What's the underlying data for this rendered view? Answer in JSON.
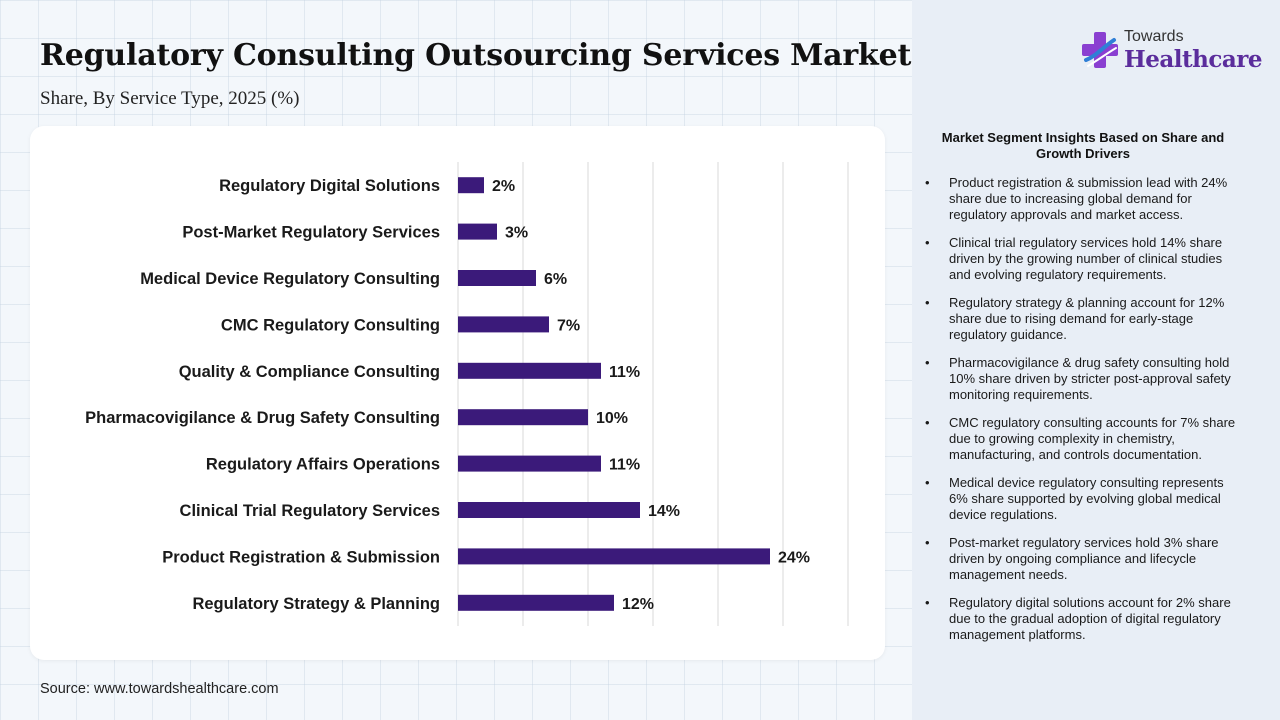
{
  "header": {
    "title": "Regulatory Consulting Outsourcing Services Market",
    "subtitle": "Share, By Service Type, 2025 (%)"
  },
  "brand": {
    "line1": "Towards",
    "line2": "Healthcare",
    "colors": {
      "purple": "#5b2d9c",
      "blue": "#2f7fd6",
      "cross": "#8a3fd1"
    }
  },
  "footer": {
    "source": "Source: www.towardshealthcare.com"
  },
  "colors": {
    "bar": "#3b1a7a",
    "grid": "#d9d9d9"
  },
  "chart_data": {
    "type": "bar",
    "orientation": "horizontal",
    "categories": [
      "Regulatory Digital Solutions",
      "Post-Market Regulatory Services",
      "Medical Device Regulatory Consulting",
      "CMC Regulatory Consulting",
      "Quality & Compliance Consulting",
      "Pharmacovigilance & Drug Safety Consulting",
      "Regulatory Affairs Operations",
      "Clinical Trial Regulatory Services",
      "Product Registration & Submission",
      "Regulatory Strategy & Planning"
    ],
    "values": [
      2,
      3,
      6,
      7,
      11,
      10,
      11,
      14,
      24,
      12
    ],
    "data_labels": [
      "2%",
      "3%",
      "6%",
      "7%",
      "11%",
      "10%",
      "11%",
      "14%",
      "24%",
      "12%"
    ],
    "xlim": [
      0,
      30
    ],
    "grid": true,
    "title": "Regulatory Consulting Outsourcing Services Market",
    "subtitle": "Share, By Service Type, 2025 (%)",
    "xlabel": "",
    "ylabel": ""
  },
  "insights": {
    "title": "Market Segment Insights Based on Share and Growth Drivers",
    "bullet": "•",
    "items": [
      "Product registration & submission lead with 24% share due to increasing global demand for regulatory approvals and market access.",
      "Clinical trial regulatory services hold 14% share driven by the growing number of clinical studies and evolving regulatory requirements.",
      "Regulatory strategy & planning account for 12% share due to rising demand for early-stage regulatory guidance.",
      "Pharmacovigilance & drug safety consulting hold 10% share driven by stricter post-approval safety monitoring requirements.",
      "CMC regulatory consulting accounts for 7% share due to growing complexity in chemistry, manufacturing, and controls documentation.",
      "Medical device regulatory consulting represents 6% share supported by evolving global medical device regulations.",
      "Post-market regulatory services hold 3% share driven by ongoing compliance and lifecycle management needs.",
      "Regulatory digital solutions account for 2% share due to the gradual adoption of digital regulatory management platforms."
    ]
  }
}
